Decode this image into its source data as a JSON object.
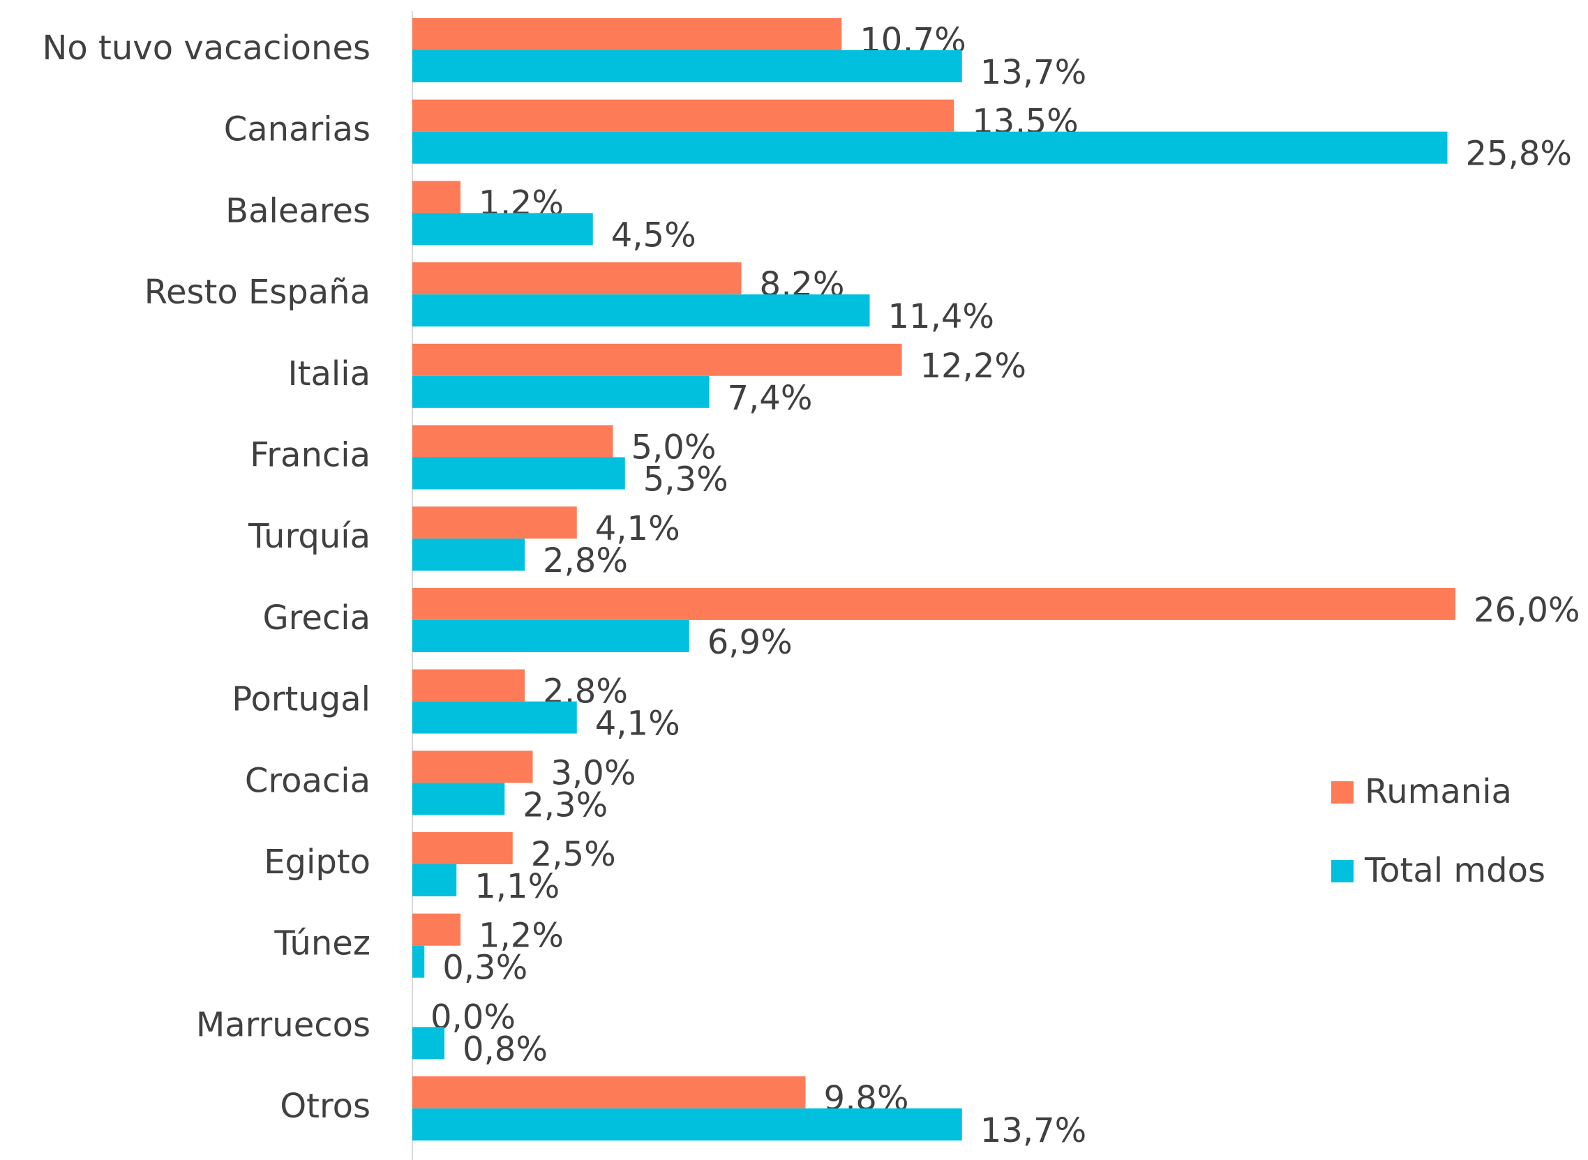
{
  "chart_data": {
    "type": "barh",
    "categories": [
      "No tuvo vacaciones",
      "Canarias",
      "Baleares",
      "Resto España",
      "Italia",
      "Francia",
      "Turquía",
      "Grecia",
      "Portugal",
      "Croacia",
      "Egipto",
      "Túnez",
      "Marruecos",
      "Otros"
    ],
    "series": [
      {
        "name": "Rumania",
        "color": "#fd7b56",
        "values": [
          10.7,
          13.5,
          1.2,
          8.2,
          12.2,
          5.0,
          4.1,
          26.0,
          2.8,
          3.0,
          2.5,
          1.2,
          0.0,
          9.8
        ],
        "value_labels": [
          "10,7%",
          "13,5%",
          "1,2%",
          "8,2%",
          "12,2%",
          "5,0%",
          "4,1%",
          "26,0%",
          "2,8%",
          "3,0%",
          "2,5%",
          "1,2%",
          "0,0%",
          "9,8%"
        ]
      },
      {
        "name": "Total mdos",
        "color": "#00c0de",
        "values": [
          13.7,
          25.8,
          4.5,
          11.4,
          7.4,
          5.3,
          2.8,
          6.9,
          4.1,
          2.3,
          1.1,
          0.3,
          0.8,
          13.7
        ],
        "value_labels": [
          "13,7%",
          "25,8%",
          "4,5%",
          "11,4%",
          "7,4%",
          "5,3%",
          "2,8%",
          "6,9%",
          "4,1%",
          "2,3%",
          "1,1%",
          "0,3%",
          "0,8%",
          "13,7%"
        ]
      }
    ],
    "legend": "right"
  }
}
